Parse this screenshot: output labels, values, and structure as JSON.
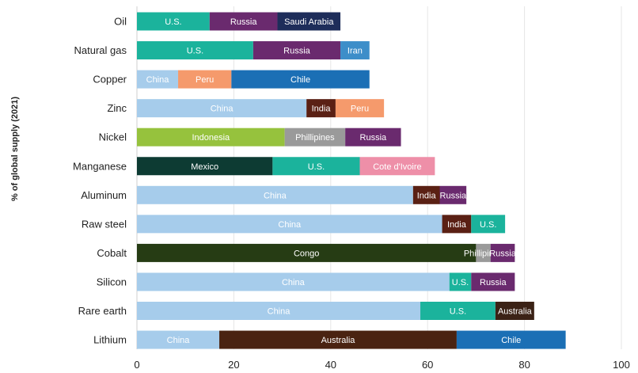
{
  "chart_data": {
    "type": "bar",
    "orientation": "horizontal",
    "stacked": true,
    "ylabel": "% of global supply (2021)",
    "xlim": [
      0,
      100
    ],
    "xticks": [
      0,
      20,
      40,
      60,
      80,
      100
    ],
    "grid": true,
    "categories": [
      "Oil",
      "Natural gas",
      "Copper",
      "Zinc",
      "Nickel",
      "Manganese",
      "Aluminum",
      "Raw steel",
      "Cobalt",
      "Silicon",
      "Rare earth",
      "Lithium"
    ],
    "bars": [
      {
        "category": "Oil",
        "segments": [
          {
            "label": "U.S.",
            "value": 15,
            "color": "#1bb39c",
            "text_color": "#ffffff"
          },
          {
            "label": "Russia",
            "value": 14,
            "color": "#6a2a6e",
            "text_color": "#ffffff"
          },
          {
            "label": "Saudi Arabia",
            "value": 13,
            "color": "#1e2d5a",
            "text_color": "#ffffff"
          }
        ]
      },
      {
        "category": "Natural gas",
        "segments": [
          {
            "label": "U.S.",
            "value": 24,
            "color": "#1bb39c",
            "text_color": "#ffffff"
          },
          {
            "label": "Russia",
            "value": 18,
            "color": "#6a2a6e",
            "text_color": "#ffffff"
          },
          {
            "label": "Iran",
            "value": 6,
            "color": "#3d8ec9",
            "text_color": "#ffffff"
          }
        ]
      },
      {
        "category": "Copper",
        "segments": [
          {
            "label": "China",
            "value": 8.5,
            "color": "#a6cceb",
            "text_color": "#ffffff"
          },
          {
            "label": "Peru",
            "value": 11,
            "color": "#f59a6c",
            "text_color": "#ffffff"
          },
          {
            "label": "Chile",
            "value": 28.5,
            "color": "#1b6fb5",
            "text_color": "#ffffff"
          }
        ]
      },
      {
        "category": "Zinc",
        "segments": [
          {
            "label": "China",
            "value": 35,
            "color": "#a6cceb",
            "text_color": "#ffffff"
          },
          {
            "label": "India",
            "value": 6,
            "color": "#5a2014",
            "text_color": "#ffffff"
          },
          {
            "label": "Peru",
            "value": 10,
            "color": "#f59a6c",
            "text_color": "#ffffff"
          }
        ]
      },
      {
        "category": "Nickel",
        "segments": [
          {
            "label": "Indonesia",
            "value": 30.5,
            "color": "#96c23d",
            "text_color": "#ffffff"
          },
          {
            "label": "Phillipines",
            "value": 12.5,
            "color": "#9a9a9a",
            "text_color": "#ffffff"
          },
          {
            "label": "Russia",
            "value": 11.5,
            "color": "#6a2a6e",
            "text_color": "#ffffff"
          }
        ]
      },
      {
        "category": "Manganese",
        "segments": [
          {
            "label": "Mexico",
            "value": 28,
            "color": "#0d3b33",
            "text_color": "#ffffff"
          },
          {
            "label": "U.S.",
            "value": 18,
            "color": "#1bb39c",
            "text_color": "#ffffff"
          },
          {
            "label": "Cote d'Ivoire",
            "value": 15.5,
            "color": "#ee8fa8",
            "text_color": "#ffffff"
          }
        ]
      },
      {
        "category": "Aluminum",
        "segments": [
          {
            "label": "China",
            "value": 57,
            "color": "#a6cceb",
            "text_color": "#ffffff"
          },
          {
            "label": "India",
            "value": 5.5,
            "color": "#5a2014",
            "text_color": "#ffffff"
          },
          {
            "label": "Russia",
            "value": 5.5,
            "color": "#6a2a6e",
            "text_color": "#ffffff"
          }
        ]
      },
      {
        "category": "Raw steel",
        "segments": [
          {
            "label": "China",
            "value": 63,
            "color": "#a6cceb",
            "text_color": "#ffffff"
          },
          {
            "label": "India",
            "value": 6,
            "color": "#5a2014",
            "text_color": "#ffffff"
          },
          {
            "label": "U.S.",
            "value": 7,
            "color": "#1bb39c",
            "text_color": "#ffffff"
          }
        ]
      },
      {
        "category": "Cobalt",
        "segments": [
          {
            "label": "Congo",
            "value": 70,
            "color": "#263c14",
            "text_color": "#ffffff"
          },
          {
            "label": "Phillipines",
            "value": 3,
            "color": "#9a9a9a",
            "text_color": "#ffffff"
          },
          {
            "label": "Russia",
            "value": 5,
            "color": "#6a2a6e",
            "text_color": "#ffffff"
          }
        ]
      },
      {
        "category": "Silicon",
        "segments": [
          {
            "label": "China",
            "value": 64.5,
            "color": "#a6cceb",
            "text_color": "#ffffff"
          },
          {
            "label": "U.S.",
            "value": 4.5,
            "color": "#1bb39c",
            "text_color": "#ffffff"
          },
          {
            "label": "Russia",
            "value": 9,
            "color": "#6a2a6e",
            "text_color": "#ffffff"
          }
        ]
      },
      {
        "category": "Rare earth",
        "segments": [
          {
            "label": "China",
            "value": 58.5,
            "color": "#a6cceb",
            "text_color": "#ffffff"
          },
          {
            "label": "U.S.",
            "value": 15.5,
            "color": "#1bb39c",
            "text_color": "#ffffff"
          },
          {
            "label": "Australia",
            "value": 8,
            "color": "#3b2216",
            "text_color": "#ffffff"
          }
        ]
      },
      {
        "category": "Lithium",
        "segments": [
          {
            "label": "China",
            "value": 17,
            "color": "#a6cceb",
            "text_color": "#ffffff"
          },
          {
            "label": "Australia",
            "value": 49,
            "color": "#4a2311",
            "text_color": "#ffffff"
          },
          {
            "label": "Chile",
            "value": 22.5,
            "color": "#1b6fb5",
            "text_color": "#ffffff"
          }
        ]
      }
    ]
  }
}
